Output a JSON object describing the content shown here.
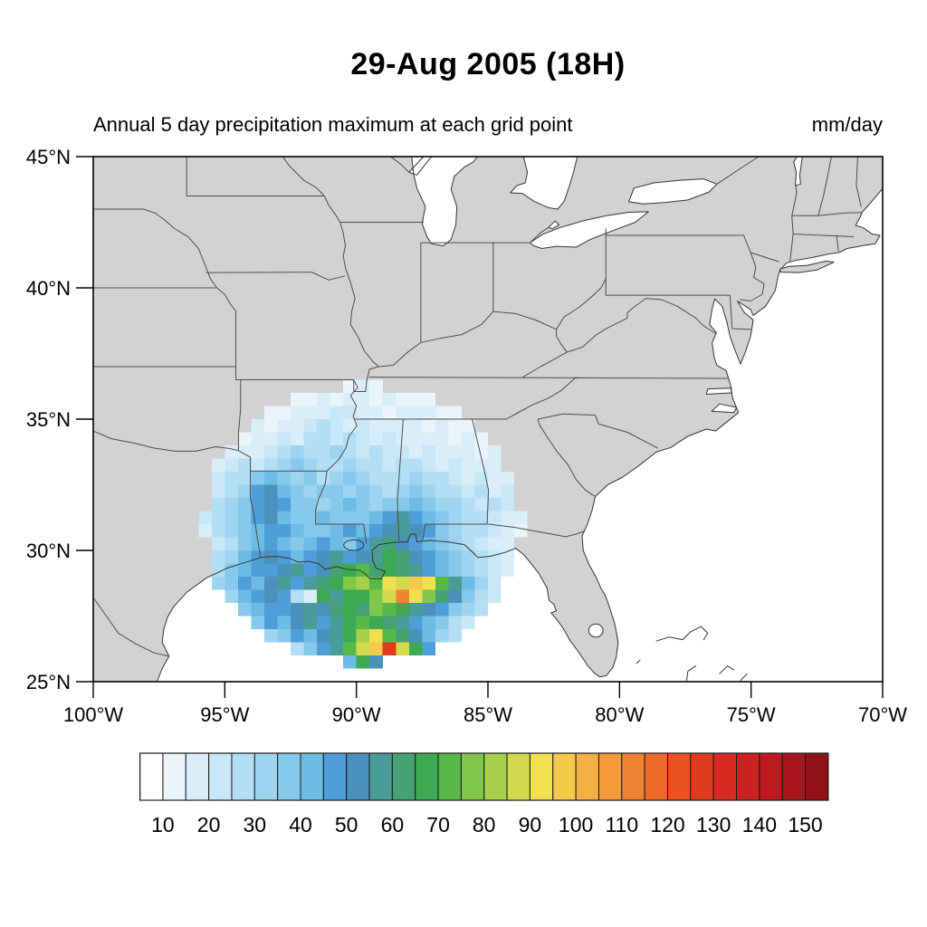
{
  "title": "29-Aug 2005 (18H)",
  "subtitle_left": "Annual 5 day precipitation maximum at each grid point",
  "units_label": "mm/day",
  "colors": {
    "land": "#d2d2d2",
    "water": "#ffffff",
    "state_border": "#4d4d4d",
    "coastline": "#333333",
    "frame": "#000000"
  },
  "axes": {
    "lat_ticks": [
      {
        "label": "45°N",
        "value": 45
      },
      {
        "label": "40°N",
        "value": 40
      },
      {
        "label": "35°N",
        "value": 35
      },
      {
        "label": "30°N",
        "value": 30
      },
      {
        "label": "25°N",
        "value": 25
      }
    ],
    "lon_ticks": [
      {
        "label": "100°W",
        "value": -100
      },
      {
        "label": "95°W",
        "value": -95
      },
      {
        "label": "90°W",
        "value": -90
      },
      {
        "label": "85°W",
        "value": -85
      },
      {
        "label": "80°W",
        "value": -80
      },
      {
        "label": "75°W",
        "value": -75
      },
      {
        "label": "70°W",
        "value": -70
      }
    ]
  },
  "colorbar": {
    "tick_labels": [
      "10",
      "20",
      "30",
      "40",
      "50",
      "60",
      "70",
      "80",
      "90",
      "100",
      "110",
      "120",
      "130",
      "140",
      "150"
    ],
    "colors": [
      "#ffffff",
      "#e9f5fb",
      "#daeef9",
      "#c8e7f7",
      "#b3def4",
      "#9dd4f0",
      "#86c9ec",
      "#6cbce6",
      "#4f9dd9",
      "#4a92bb",
      "#4a9c98",
      "#44a274",
      "#3daa53",
      "#59b84a",
      "#80c74a",
      "#a7d14d",
      "#d3d951",
      "#f1e04f",
      "#f4c94c",
      "#f3b145",
      "#f29a3c",
      "#f08233",
      "#ed6a28",
      "#e9531f",
      "#e13b1d",
      "#d62b20",
      "#c92321",
      "#bb1a1f",
      "#a8151a",
      "#921117"
    ]
  },
  "chart_data": {
    "type": "heatmap",
    "title": "29-Aug 2005 (18H)",
    "subtitle": "Annual 5 day precipitation maximum at each grid point",
    "units": "mm/day",
    "projection": "cylindrical-equidistant",
    "lon_range": [
      -100,
      -70
    ],
    "lat_range": [
      25,
      45
    ],
    "grid_resolution_deg": 0.5,
    "levels": [
      10,
      15,
      20,
      25,
      30,
      35,
      40,
      45,
      50,
      55,
      60,
      65,
      70,
      75,
      80,
      85,
      90,
      95,
      100,
      105,
      110,
      115,
      120,
      125,
      130,
      135,
      140,
      145,
      150
    ],
    "legend_position": "bottom",
    "grid": false,
    "rows": [
      {
        "lat": 36.25,
        "lon0": -90.25,
        "values": [
          12,
          15,
          12
        ]
      },
      {
        "lat": 35.75,
        "lon0": -92.25,
        "values": [
          10,
          12,
          15,
          12,
          18,
          15,
          12,
          15,
          12,
          10,
          12
        ]
      },
      {
        "lat": 35.25,
        "lon0": -93.25,
        "values": [
          12,
          10,
          15,
          18,
          15,
          20,
          22,
          18,
          15,
          12,
          15,
          18,
          15,
          12,
          10
        ]
      },
      {
        "lat": 34.75,
        "lon0": -93.75,
        "values": [
          15,
          12,
          18,
          15,
          22,
          25,
          20,
          18,
          22,
          18,
          15,
          18,
          15,
          12,
          15,
          12,
          10
        ]
      },
      {
        "lat": 34.25,
        "lon0": -94.25,
        "values": [
          12,
          15,
          18,
          22,
          18,
          25,
          28,
          22,
          25,
          20,
          18,
          22,
          18,
          15,
          18,
          15,
          12,
          15,
          12
        ]
      },
      {
        "lat": 33.75,
        "lon0": -94.75,
        "values": [
          15,
          18,
          15,
          22,
          25,
          30,
          25,
          28,
          32,
          25,
          22,
          25,
          20,
          22,
          18,
          22,
          15,
          18,
          15,
          12,
          15
        ]
      },
      {
        "lat": 33.25,
        "lon0": -95.25,
        "values": [
          18,
          22,
          25,
          20,
          28,
          32,
          38,
          30,
          25,
          28,
          32,
          28,
          25,
          22,
          25,
          28,
          22,
          18,
          20,
          15,
          18,
          15
        ]
      },
      {
        "lat": 32.75,
        "lon0": -95.25,
        "values": [
          20,
          25,
          28,
          35,
          42,
          38,
          30,
          35,
          28,
          32,
          35,
          30,
          28,
          25,
          28,
          32,
          25,
          28,
          22,
          18,
          22,
          18,
          15
        ]
      },
      {
        "lat": 32.25,
        "lon0": -95.25,
        "values": [
          22,
          28,
          32,
          45,
          50,
          42,
          35,
          30,
          35,
          38,
          32,
          35,
          30,
          28,
          32,
          35,
          30,
          25,
          28,
          22,
          25,
          18,
          20
        ]
      },
      {
        "lat": 31.75,
        "lon0": -95.25,
        "values": [
          25,
          30,
          35,
          48,
          52,
          45,
          38,
          35,
          32,
          38,
          42,
          35,
          32,
          35,
          38,
          42,
          35,
          30,
          32,
          25,
          22,
          25,
          20
        ]
      },
      {
        "lat": 31.25,
        "lon0": -95.75,
        "values": [
          20,
          28,
          32,
          38,
          45,
          50,
          42,
          38,
          35,
          40,
          38,
          35,
          38,
          42,
          45,
          55,
          48,
          40,
          35,
          30,
          28,
          25,
          22,
          18,
          15
        ]
      },
      {
        "lat": 30.75,
        "lon0": -95.75,
        "values": [
          18,
          25,
          30,
          35,
          40,
          45,
          48,
          42,
          38,
          35,
          42,
          45,
          40,
          45,
          52,
          58,
          50,
          45,
          38,
          32,
          28,
          25,
          20,
          15,
          12
        ]
      },
      {
        "lat": 30.25,
        "lon0": -95.25,
        "values": [
          22,
          28,
          35,
          42,
          48,
          42,
          38,
          42,
          45,
          40,
          38,
          45,
          55,
          60,
          52,
          48,
          42,
          38,
          32,
          28,
          22,
          18,
          15
        ]
      },
      {
        "lat": 29.75,
        "lon0": -95.25,
        "values": [
          25,
          32,
          40,
          45,
          52,
          48,
          42,
          45,
          50,
          55,
          48,
          52,
          58,
          65,
          60,
          52,
          45,
          40,
          35,
          30,
          25,
          20,
          15
        ]
      },
      {
        "lat": 29.25,
        "lon0": -95.25,
        "values": [
          28,
          35,
          42,
          48,
          45,
          52,
          55,
          48,
          52,
          60,
          65,
          70,
          62,
          68,
          60,
          55,
          48,
          42,
          38,
          30,
          25,
          20,
          18
        ]
      },
      {
        "lat": 28.75,
        "lon0": -95.25,
        "values": [
          30,
          38,
          45,
          42,
          50,
          55,
          48,
          55,
          62,
          68,
          75,
          80,
          72,
          92,
          85,
          98,
          90,
          70,
          55,
          40,
          30,
          22
        ]
      },
      {
        "lat": 28.25,
        "lon0": -94.75,
        "values": [
          32,
          40,
          45,
          52,
          48,
          25,
          15,
          65,
          58,
          65,
          68,
          78,
          85,
          110,
          90,
          75,
          62,
          50,
          38,
          28,
          22
        ]
      },
      {
        "lat": 27.75,
        "lon0": -94.25,
        "values": [
          35,
          42,
          48,
          45,
          52,
          58,
          52,
          60,
          68,
          62,
          75,
          70,
          65,
          58,
          52,
          45,
          38,
          30,
          25
        ]
      },
      {
        "lat": 27.25,
        "lon0": -93.75,
        "values": [
          38,
          45,
          42,
          50,
          55,
          48,
          58,
          65,
          72,
          68,
          62,
          55,
          48,
          42,
          35,
          28,
          22
        ]
      },
      {
        "lat": 26.75,
        "lon0": -93.25,
        "values": [
          30,
          38,
          45,
          42,
          50,
          58,
          65,
          80,
          93,
          72,
          60,
          50,
          40,
          32,
          25
        ]
      },
      {
        "lat": 26.25,
        "lon0": -92.25,
        "values": [
          25,
          35,
          45,
          55,
          70,
          85,
          98,
          128,
          85,
          65,
          48
        ]
      },
      {
        "lat": 25.75,
        "lon0": -90.25,
        "values": [
          40,
          65,
          50
        ]
      }
    ]
  }
}
